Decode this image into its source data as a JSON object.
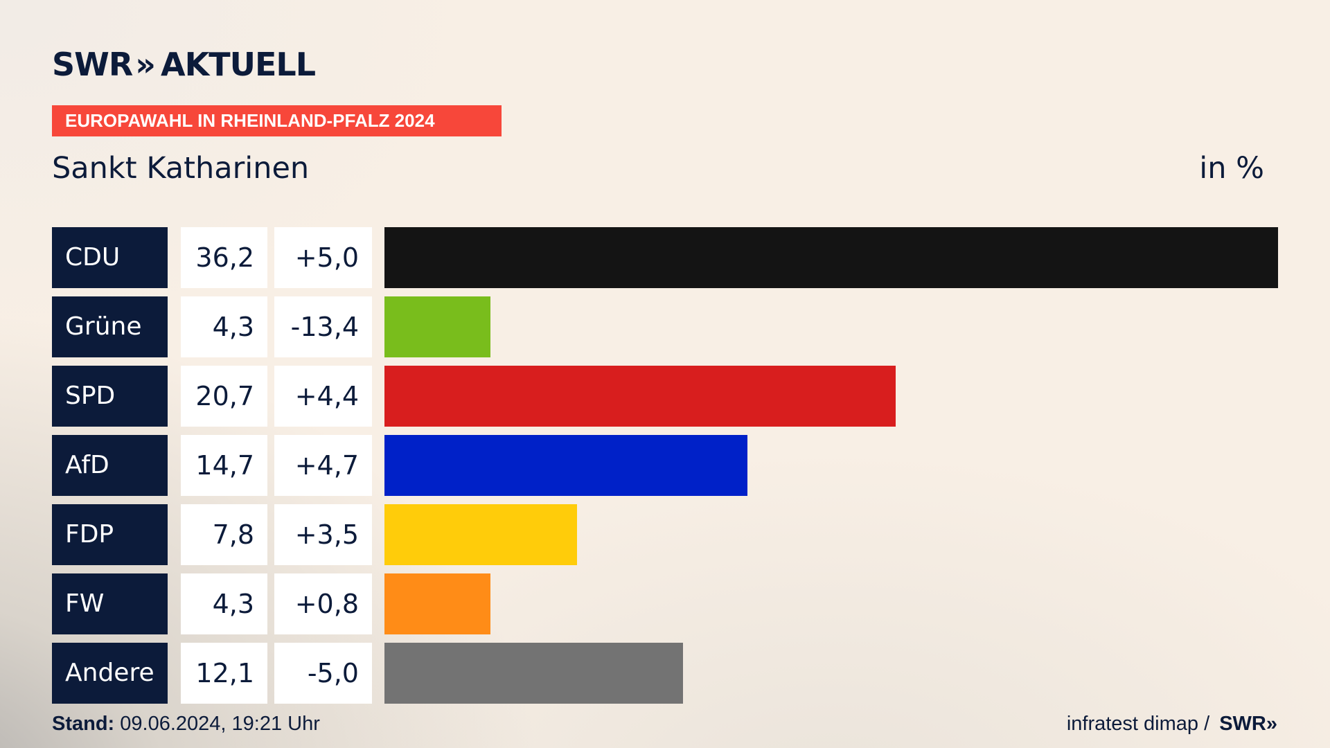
{
  "header": {
    "logo_text": "SWR",
    "logo_chevron": "»",
    "logo_suffix": "AKTUELL",
    "tag": "EUROPAWAHL IN RHEINLAND-PFALZ 2024",
    "subtitle": "Sankt Katharinen",
    "unit": "in %"
  },
  "colors": {
    "navy": "#0c1b3a",
    "tag": "#f7473a",
    "background": "#f8efe5"
  },
  "chart_data": {
    "type": "bar",
    "title": "Sankt Katharinen",
    "ylabel": "in %",
    "categories": [
      "CDU",
      "Grüne",
      "SPD",
      "AfD",
      "FDP",
      "FW",
      "Andere"
    ],
    "values": [
      36.2,
      4.3,
      20.7,
      14.7,
      7.8,
      4.3,
      12.1
    ],
    "value_labels": [
      "36,2",
      "4,3",
      "20,7",
      "14,7",
      "7,8",
      "4,3",
      "12,1"
    ],
    "diff_labels": [
      "+5,0",
      "-13,4",
      "+4,4",
      "+4,7",
      "+3,5",
      "+0,8",
      "-5,0"
    ],
    "colors": [
      "#141414",
      "#79bd1c",
      "#d81e1e",
      "#0021c8",
      "#ffcc0a",
      "#ff8c17",
      "#737373"
    ],
    "xlim": [
      0,
      36.2
    ]
  },
  "footer": {
    "stand_label": "Stand:",
    "stand_value": " 09.06.2024, 19:21 Uhr",
    "source": "infratest dimap / ",
    "source_logo": "SWR»"
  }
}
